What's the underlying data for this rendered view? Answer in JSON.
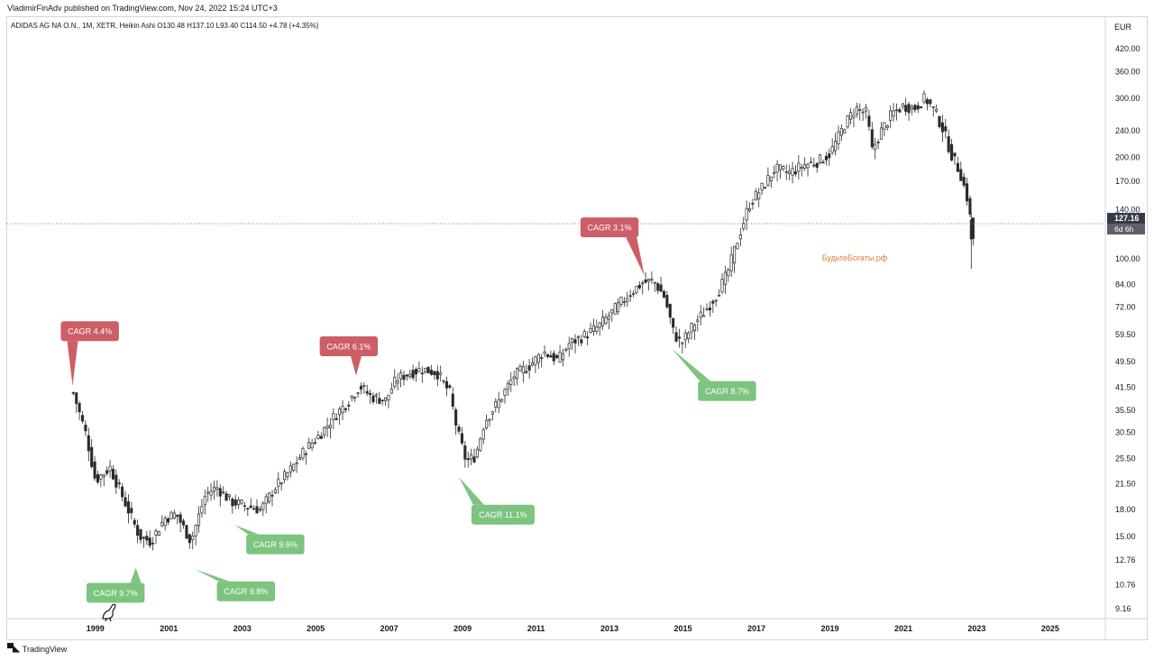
{
  "publisher": "VladimirFinAdv published on TradingView.com, Nov 24, 2022 15:24 UTC+3",
  "symbol_line": "ADIDAS AG NA O.N., 1M, XETR, Heikin Ashi  O130.48  H137.10  L93.40  C114.50  +4.78 (+4.35%)",
  "currency": "EUR",
  "watermark": "БудьтеБогаты.рф",
  "footer": "TradingView",
  "colors": {
    "up": "#2a2a2a",
    "red_label": "#cd5d66",
    "green_label": "#7cc47f",
    "price_tag": "#363a45"
  },
  "chart_data": {
    "type": "candlestick",
    "title": "ADIDAS AG NA O.N., 1M, XETR, Heikin Ashi",
    "ohlc_last": {
      "open": 130.48,
      "high": 137.1,
      "low": 93.4,
      "close": 114.5,
      "change": 4.78,
      "change_pct": 4.35
    },
    "y_scale": "log",
    "ylim": [
      8.6,
      470
    ],
    "xlim": [
      1996.6,
      2026.5
    ],
    "y_ticks": [
      "420.00",
      "360.00",
      "300.00",
      "240.00",
      "200.00",
      "170.00",
      "140.00",
      "100.00",
      "84.00",
      "72.00",
      "59.50",
      "49.50",
      "41.50",
      "35.50",
      "30.50",
      "25.50",
      "21.50",
      "18.00",
      "15.00",
      "12.76",
      "10.76",
      "9.16"
    ],
    "y_tick_values": [
      420,
      360,
      300,
      240,
      200,
      170,
      140,
      100,
      84,
      72,
      59.5,
      49.5,
      41.5,
      35.5,
      30.5,
      25.5,
      21.5,
      18,
      15,
      12.76,
      10.76,
      9.16
    ],
    "x_ticks": [
      "1999",
      "2001",
      "2003",
      "2005",
      "2007",
      "2009",
      "2011",
      "2013",
      "2015",
      "2017",
      "2019",
      "2021",
      "2023",
      "2025"
    ],
    "x_tick_values": [
      1999,
      2001,
      2003,
      2005,
      2007,
      2009,
      2011,
      2013,
      2015,
      2017,
      2019,
      2021,
      2023,
      2025
    ],
    "current_price": {
      "value": "127.16",
      "countdown": "6d 6h"
    },
    "anchors": [
      [
        1998.4,
        40
      ],
      [
        1998.75,
        30
      ],
      [
        1999.0,
        22
      ],
      [
        1999.4,
        24
      ],
      [
        1999.8,
        19
      ],
      [
        2000.2,
        15
      ],
      [
        2000.5,
        14.5
      ],
      [
        2000.9,
        17
      ],
      [
        2001.2,
        17.5
      ],
      [
        2001.6,
        14.5
      ],
      [
        2002.0,
        20
      ],
      [
        2002.3,
        21
      ],
      [
        2002.7,
        19
      ],
      [
        2003.1,
        18.5
      ],
      [
        2003.5,
        18
      ],
      [
        2003.9,
        21
      ],
      [
        2004.3,
        23.5
      ],
      [
        2004.7,
        27
      ],
      [
        2005.1,
        30
      ],
      [
        2005.5,
        34
      ],
      [
        2005.9,
        38
      ],
      [
        2006.2,
        42
      ],
      [
        2006.5,
        39
      ],
      [
        2006.9,
        38
      ],
      [
        2007.2,
        44
      ],
      [
        2007.6,
        46
      ],
      [
        2007.9,
        47
      ],
      [
        2008.3,
        46
      ],
      [
        2008.65,
        40
      ],
      [
        2008.85,
        31
      ],
      [
        2009.1,
        25
      ],
      [
        2009.35,
        26
      ],
      [
        2009.6,
        33
      ],
      [
        2010.0,
        38
      ],
      [
        2010.4,
        45
      ],
      [
        2010.8,
        48
      ],
      [
        2011.2,
        53
      ],
      [
        2011.6,
        50
      ],
      [
        2011.9,
        56
      ],
      [
        2012.3,
        59
      ],
      [
        2012.7,
        63
      ],
      [
        2013.1,
        70
      ],
      [
        2013.5,
        78
      ],
      [
        2013.9,
        85
      ],
      [
        2014.2,
        86
      ],
      [
        2014.5,
        77
      ],
      [
        2014.75,
        60
      ],
      [
        2014.95,
        56
      ],
      [
        2015.3,
        64
      ],
      [
        2015.6,
        70
      ],
      [
        2015.9,
        78
      ],
      [
        2016.2,
        90
      ],
      [
        2016.5,
        115
      ],
      [
        2016.8,
        145
      ],
      [
        2017.2,
        165
      ],
      [
        2017.5,
        185
      ],
      [
        2017.9,
        180
      ],
      [
        2018.3,
        190
      ],
      [
        2018.7,
        195
      ],
      [
        2019.0,
        205
      ],
      [
        2019.4,
        250
      ],
      [
        2019.7,
        280
      ],
      [
        2020.0,
        270
      ],
      [
        2020.15,
        210
      ],
      [
        2020.4,
        240
      ],
      [
        2020.7,
        270
      ],
      [
        2021.0,
        285
      ],
      [
        2021.3,
        280
      ],
      [
        2021.6,
        300
      ],
      [
        2021.85,
        275
      ],
      [
        2022.1,
        240
      ],
      [
        2022.3,
        205
      ],
      [
        2022.55,
        180
      ],
      [
        2022.75,
        150
      ],
      [
        2022.9,
        115
      ]
    ],
    "series": [],
    "annotations": [
      {
        "text": "CAGR 4.4%",
        "tone": "red",
        "label_x": 1998.85,
        "label_price": 61,
        "point_x": 1998.38,
        "point_price": 42
      },
      {
        "text": "CAGR 6.1%",
        "tone": "red",
        "label_x": 2005.9,
        "label_price": 55,
        "point_x": 2006.1,
        "point_price": 45
      },
      {
        "text": "CAGR 3.1%",
        "tone": "red",
        "label_x": 2013.0,
        "label_price": 124,
        "point_x": 2013.95,
        "point_price": 89
      },
      {
        "text": "CAGR 9.7%",
        "tone": "green",
        "label_x": 1999.55,
        "label_price": 10.2,
        "point_x": 2000.1,
        "point_price": 12.1
      },
      {
        "text": "CAGR 9.8%",
        "tone": "green",
        "label_x": 2003.1,
        "label_price": 10.3,
        "point_x": 2001.7,
        "point_price": 12.0
      },
      {
        "text": "CAGR 9.6%",
        "tone": "green",
        "label_x": 2003.9,
        "label_price": 14.2,
        "point_x": 2002.8,
        "point_price": 16.2
      },
      {
        "text": "CAGR 11.1%",
        "tone": "green",
        "label_x": 2010.1,
        "label_price": 17.4,
        "point_x": 2008.9,
        "point_price": 22.5
      },
      {
        "text": "CAGR 8.7%",
        "tone": "green",
        "label_x": 2016.2,
        "label_price": 40.5,
        "point_x": 2014.7,
        "point_price": 54
      }
    ]
  }
}
